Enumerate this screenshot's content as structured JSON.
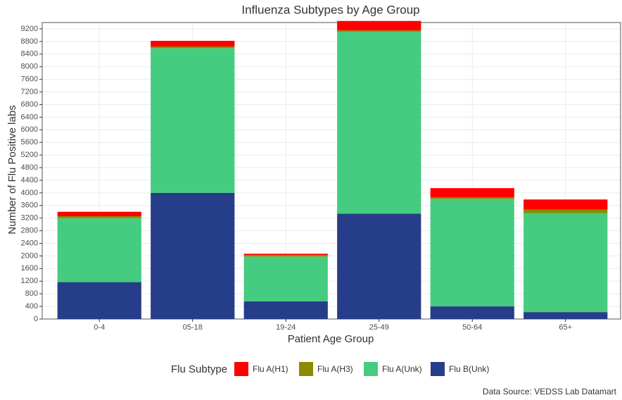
{
  "chart_data": {
    "type": "stacked_bar",
    "title": "Influenza Subtypes by Age Group",
    "x_label": "Patient Age Group",
    "y_label": "Number of Flu Positive labs",
    "legend_title": "Flu Subtype",
    "source": "Data Source: VEDSS Lab Datamart",
    "categories": [
      "0-4",
      "05-18",
      "19-24",
      "25-49",
      "50-64",
      "65+"
    ],
    "series": [
      {
        "name": "Flu A(H1)",
        "color": "#ff0000",
        "values": [
          140,
          180,
          40,
          300,
          290,
          320
        ]
      },
      {
        "name": "Flu A(H3)",
        "color": "#8b8b00",
        "values": [
          60,
          50,
          50,
          40,
          50,
          110
        ]
      },
      {
        "name": "Flu A(Unk)",
        "color": "#45cc80",
        "values": [
          2030,
          4590,
          1420,
          5770,
          3410,
          3140
        ]
      },
      {
        "name": "Flu B(Unk)",
        "color": "#263e8a",
        "values": [
          1170,
          4000,
          560,
          3340,
          400,
          220
        ]
      }
    ],
    "ylim": [
      0,
      9400
    ],
    "yticks": [
      0,
      400,
      800,
      1200,
      1600,
      2000,
      2400,
      2800,
      3200,
      3600,
      4000,
      4400,
      4800,
      5200,
      5600,
      6000,
      6400,
      6800,
      7200,
      7600,
      8000,
      8400,
      8800,
      9200
    ],
    "grid": true,
    "legend": "bottom"
  }
}
